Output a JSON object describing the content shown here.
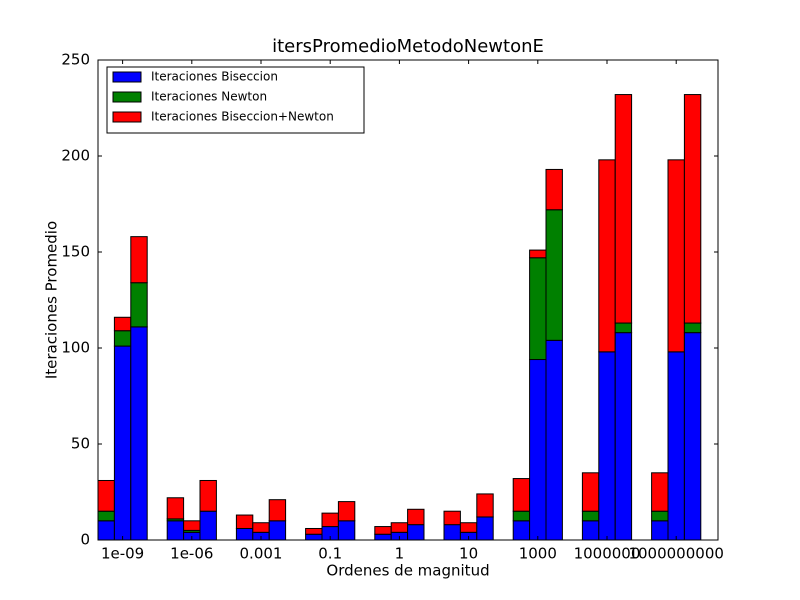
{
  "chart_data": {
    "type": "stacked-bar",
    "title": "itersPromedioMetodoNewtonE",
    "xlabel": "Ordenes de magnitud",
    "ylabel": "Iteraciones Promedio",
    "categories": [
      "1e-09",
      "1e-06",
      "0.001",
      "0.1",
      "1",
      "10",
      "1000",
      "1000000",
      "1000000000"
    ],
    "series": [
      {
        "name": "Iteraciones Biseccion",
        "color": "#0000ff",
        "values": [
          [
            10,
            101,
            111
          ],
          [
            10,
            4,
            15
          ],
          [
            6,
            4,
            10
          ],
          [
            3,
            7,
            10
          ],
          [
            3,
            4,
            8
          ],
          [
            8,
            4,
            12
          ],
          [
            10,
            94,
            104
          ],
          [
            10,
            98,
            108
          ],
          [
            10,
            98,
            108
          ]
        ]
      },
      {
        "name": "Iteraciones Newton",
        "color": "#008000",
        "values": [
          [
            5,
            8,
            23
          ],
          [
            1,
            1,
            0
          ],
          [
            0,
            0,
            0
          ],
          [
            0,
            0,
            0
          ],
          [
            0,
            0,
            0
          ],
          [
            0,
            0,
            0
          ],
          [
            5,
            53,
            68
          ],
          [
            5,
            0,
            5
          ],
          [
            5,
            0,
            5
          ]
        ]
      },
      {
        "name": "Iteraciones Biseccion+Newton",
        "color": "#ff0000",
        "values": [
          [
            16,
            7,
            24
          ],
          [
            11,
            5,
            16
          ],
          [
            7,
            5,
            11
          ],
          [
            3,
            7,
            10
          ],
          [
            4,
            5,
            8
          ],
          [
            7,
            5,
            12
          ],
          [
            17,
            4,
            21
          ],
          [
            20,
            100,
            119
          ],
          [
            20,
            100,
            119
          ]
        ]
      }
    ],
    "ylim": [
      0,
      250
    ],
    "yticks": [
      0,
      50,
      100,
      150,
      200,
      250
    ],
    "legend": "upper left"
  }
}
